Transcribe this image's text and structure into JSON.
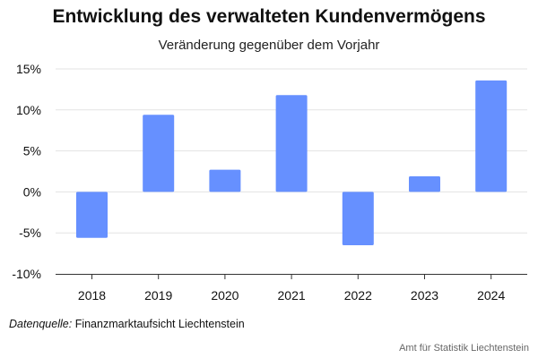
{
  "chart_data": {
    "type": "bar",
    "title": "Entwicklung des verwalteten Kundenvermögens",
    "subtitle": "Veränderung gegenüber dem Vorjahr",
    "categories": [
      "2018",
      "2019",
      "2020",
      "2021",
      "2022",
      "2023",
      "2024"
    ],
    "values": [
      -5.6,
      9.4,
      2.7,
      11.8,
      -6.5,
      1.9,
      13.6
    ],
    "unit": "%",
    "ylim": [
      -10,
      15
    ],
    "yticks": [
      -10,
      -5,
      0,
      5,
      10,
      15
    ],
    "ytick_labels": [
      "-10%",
      "-5%",
      "0%",
      "5%",
      "10%",
      "15%"
    ],
    "grid": true,
    "bar_color": "#6690ff"
  },
  "footer": {
    "source_label": "Datenquelle:",
    "source_text": "Finanzmarktaufsicht Liechtenstein",
    "credit": "Amt für Statistik Liechtenstein"
  }
}
